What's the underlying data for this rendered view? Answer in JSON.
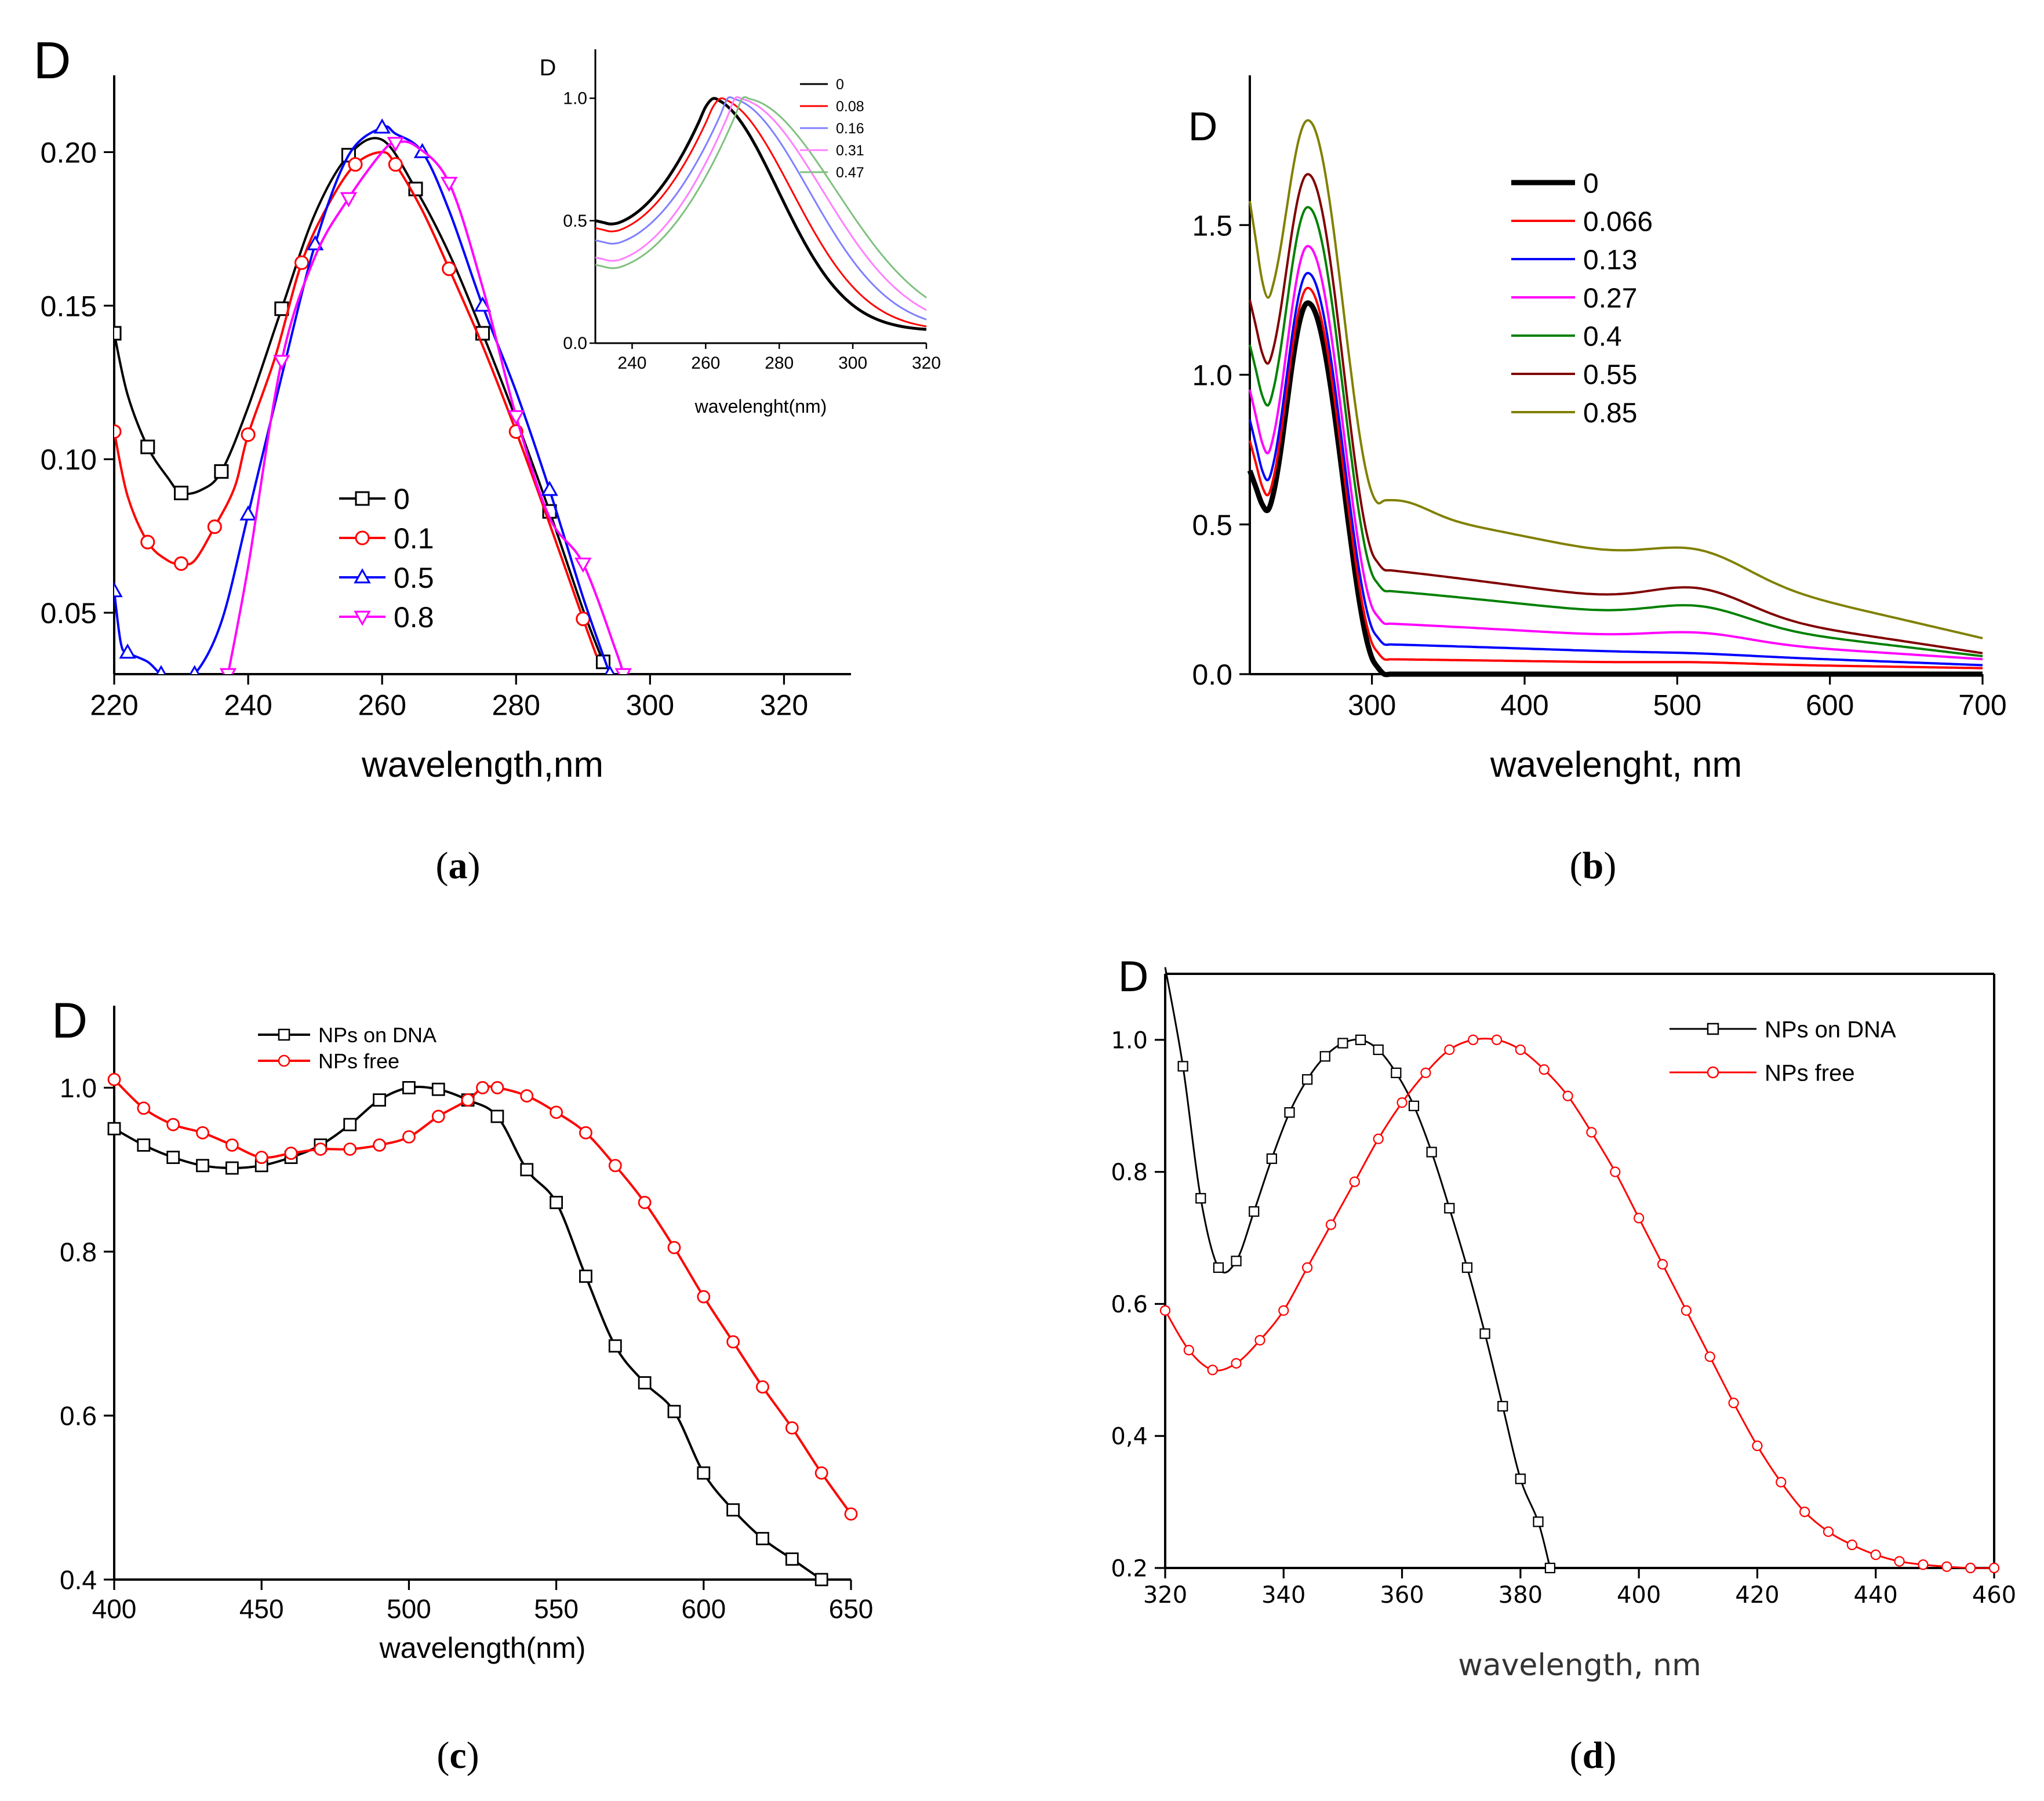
{
  "panels": [
    {
      "id": "a",
      "caption_open": "(",
      "caption_letter": "a",
      "caption_close": ")",
      "chart_data": {
        "type": "line",
        "title": "",
        "ylabel": "D",
        "xlabel": "wavelength,nm",
        "xlim": [
          220,
          330
        ],
        "ylim": [
          0.03,
          0.225
        ],
        "xticks": [
          "220",
          "240",
          "260",
          "280",
          "300",
          "320"
        ],
        "yticks": [
          "0.05",
          "0.10",
          "0.15",
          "0.20"
        ],
        "legend_position": "lower-left",
        "series": [
          {
            "name": "0",
            "color": "#000000",
            "marker": "square",
            "x": [
              220,
              222,
              225,
              228,
              230,
              233,
              236,
              240,
              245,
              250,
              255,
              260,
              265,
              270,
              275,
              280,
              285,
              290,
              293
            ],
            "y": [
              0.141,
              0.121,
              0.104,
              0.094,
              0.089,
              0.09,
              0.096,
              0.117,
              0.149,
              0.18,
              0.199,
              0.204,
              0.188,
              0.167,
              0.141,
              0.113,
              0.083,
              0.051,
              0.034
            ]
          },
          {
            "name": "0.1",
            "color": "#ff0000",
            "marker": "circle",
            "x": [
              220,
              222,
              225,
              228,
              230,
              232,
              235,
              238,
              240,
              244,
              248,
              252,
              256,
              260,
              262,
              266,
              270,
              275,
              280,
              285,
              290,
              292
            ],
            "y": [
              0.109,
              0.088,
              0.073,
              0.067,
              0.066,
              0.067,
              0.078,
              0.091,
              0.108,
              0.133,
              0.164,
              0.183,
              0.196,
              0.2,
              0.196,
              0.181,
              0.162,
              0.137,
              0.109,
              0.079,
              0.048,
              0.036
            ]
          },
          {
            "name": "0.5",
            "color": "#0000ff",
            "marker": "triangle-up",
            "x": [
              220,
              221,
              222,
              225,
              227,
              229,
              232,
              236,
              240,
              245,
              250,
              255,
              260,
              262,
              266,
              270,
              275,
              280,
              285,
              290,
              294
            ],
            "y": [
              0.057,
              0.04,
              0.037,
              0.034,
              0.03,
              0.029,
              0.03,
              0.047,
              0.082,
              0.127,
              0.17,
              0.199,
              0.208,
              0.206,
              0.2,
              0.181,
              0.15,
              0.122,
              0.09,
              0.055,
              0.03
            ]
          },
          {
            "name": "0.8",
            "color": "#ff00ff",
            "marker": "triangle-down",
            "x": [
              237,
              240,
              245,
              250,
              255,
              260,
              262,
              265,
              270,
              275,
              280,
              285,
              290,
              295,
              296
            ],
            "y": [
              0.03,
              0.065,
              0.132,
              0.166,
              0.185,
              0.2,
              0.203,
              0.202,
              0.19,
              0.156,
              0.114,
              0.081,
              0.066,
              0.037,
              0.03
            ]
          }
        ],
        "inset": {
          "type": "line",
          "ylabel": "D",
          "xlabel": "wavelenght(nm)",
          "xlim": [
            230,
            320
          ],
          "ylim": [
            0.0,
            1.2
          ],
          "xticks": [
            "240",
            "260",
            "280",
            "300",
            "320"
          ],
          "yticks": [
            "0.0",
            "0.5",
            "1.0"
          ],
          "legend_position": "top-right",
          "series": [
            {
              "name": "0",
              "color": "#000000",
              "peak": 261,
              "min_y": 0.48
            },
            {
              "name": "0.08",
              "color": "#ff0000",
              "peak": 263,
              "min_y": 0.45
            },
            {
              "name": "0.16",
              "color": "#8080ff",
              "peak": 266,
              "min_y": 0.4
            },
            {
              "name": "0.31",
              "color": "#ff80ff",
              "peak": 268,
              "min_y": 0.33
            },
            {
              "name": "0.47",
              "color": "#80c080",
              "peak": 270,
              "min_y": 0.3
            }
          ]
        }
      }
    },
    {
      "id": "b",
      "caption_open": "(",
      "caption_letter": "b",
      "caption_close": ")",
      "chart_data": {
        "type": "line",
        "title": "",
        "ylabel": "D",
        "xlabel": "wavelenght, nm",
        "xlim": [
          220,
          700
        ],
        "ylim": [
          0.0,
          2.0
        ],
        "xticks": [
          "300",
          "400",
          "500",
          "600",
          "700"
        ],
        "yticks": [
          "0.0",
          "0.5",
          "1.0",
          "1.5"
        ],
        "legend_position": "top-center",
        "series": [
          {
            "name": "0",
            "color": "#000000",
            "start": 0.68,
            "dip": 0.54,
            "peak": 1.24,
            "plateau": 0.0,
            "bump": 0.0,
            "end": 0.0
          },
          {
            "name": "0.066",
            "color": "#ff0000",
            "start": 0.78,
            "dip": 0.59,
            "peak": 1.29,
            "plateau": 0.05,
            "bump": 0.04,
            "end": 0.02
          },
          {
            "name": "0.13",
            "color": "#0000ff",
            "start": 0.85,
            "dip": 0.64,
            "peak": 1.34,
            "plateau": 0.1,
            "bump": 0.07,
            "end": 0.03
          },
          {
            "name": "0.27",
            "color": "#ff00ff",
            "start": 0.95,
            "dip": 0.73,
            "peak": 1.43,
            "plateau": 0.17,
            "bump": 0.14,
            "end": 0.05
          },
          {
            "name": "0.4",
            "color": "#008000",
            "start": 1.1,
            "dip": 0.89,
            "peak": 1.56,
            "plateau": 0.28,
            "bump": 0.23,
            "end": 0.06
          },
          {
            "name": "0.55",
            "color": "#800000",
            "start": 1.25,
            "dip": 1.03,
            "peak": 1.67,
            "plateau": 0.35,
            "bump": 0.29,
            "end": 0.07
          },
          {
            "name": "0.85",
            "color": "#808000",
            "start": 1.58,
            "dip": 1.25,
            "peak": 1.85,
            "plateau": 0.55,
            "bump": 0.42,
            "end": 0.12
          }
        ]
      }
    },
    {
      "id": "c",
      "caption_open": "(",
      "caption_letter": "c",
      "caption_close": ")",
      "chart_data": {
        "type": "line",
        "title": "",
        "ylabel": "D",
        "xlabel": "wavelength(nm)",
        "xlim": [
          400,
          650
        ],
        "ylim": [
          0.4,
          1.1
        ],
        "xticks": [
          "400",
          "450",
          "500",
          "550",
          "600",
          "650"
        ],
        "yticks": [
          "0.4",
          "0.6",
          "0.8",
          "1.0"
        ],
        "legend_position": "top-left",
        "series": [
          {
            "name": "NPs on DNA",
            "color": "#000000",
            "marker": "square-open",
            "x": [
              400,
              410,
              420,
              430,
              440,
              450,
              460,
              470,
              480,
              490,
              500,
              510,
              520,
              530,
              540,
              550,
              560,
              570,
              580,
              590,
              600,
              610,
              620,
              630,
              640
            ],
            "y": [
              0.95,
              0.93,
              0.915,
              0.905,
              0.902,
              0.905,
              0.915,
              0.93,
              0.955,
              0.985,
              1.0,
              0.998,
              0.985,
              0.965,
              0.9,
              0.86,
              0.77,
              0.685,
              0.64,
              0.605,
              0.53,
              0.485,
              0.45,
              0.425,
              0.4
            ]
          },
          {
            "name": "NPs free",
            "color": "#ff0000",
            "marker": "circle-open",
            "x": [
              400,
              410,
              420,
              430,
              440,
              450,
              460,
              470,
              480,
              490,
              500,
              510,
              520,
              525,
              530,
              540,
              550,
              560,
              570,
              580,
              590,
              600,
              610,
              620,
              630,
              640,
              650
            ],
            "y": [
              1.01,
              0.975,
              0.955,
              0.945,
              0.93,
              0.915,
              0.92,
              0.925,
              0.925,
              0.93,
              0.94,
              0.965,
              0.985,
              1.0,
              1.0,
              0.99,
              0.97,
              0.945,
              0.905,
              0.86,
              0.805,
              0.745,
              0.69,
              0.635,
              0.585,
              0.53,
              0.48
            ]
          }
        ]
      }
    },
    {
      "id": "d",
      "caption_open": "(",
      "caption_letter": "d",
      "caption_close": ")",
      "chart_data": {
        "type": "line",
        "title": "",
        "ylabel": "D",
        "xlabel": "wavelength, nm",
        "xlim": [
          320,
          460
        ],
        "ylim": [
          0.2,
          1.1
        ],
        "xticks": [
          "320",
          "340",
          "360",
          "380",
          "400",
          "420",
          "440",
          "460"
        ],
        "yticks": [
          "0.2",
          "0,4",
          "0.6",
          "0.8",
          "1.0"
        ],
        "legend_position": "top-right",
        "series": [
          {
            "name": "NPs on DNA",
            "color": "#000000",
            "marker": "square-open",
            "x": [
              320,
              323,
              326,
              329,
              332,
              335,
              338,
              341,
              344,
              347,
              350,
              353,
              356,
              359,
              362,
              365,
              368,
              371,
              374,
              377,
              380,
              383,
              385
            ],
            "y": [
              1.11,
              0.96,
              0.76,
              0.655,
              0.665,
              0.74,
              0.82,
              0.89,
              0.94,
              0.975,
              0.995,
              1.0,
              0.985,
              0.95,
              0.9,
              0.83,
              0.745,
              0.655,
              0.555,
              0.445,
              0.335,
              0.27,
              0.2
            ]
          },
          {
            "name": "NPs free",
            "color": "#ff0000",
            "marker": "circle-open",
            "x": [
              320,
              324,
              328,
              332,
              336,
              340,
              344,
              348,
              352,
              356,
              360,
              364,
              368,
              372,
              376,
              380,
              384,
              388,
              392,
              396,
              400,
              404,
              408,
              412,
              416,
              420,
              424,
              428,
              432,
              436,
              440,
              444,
              448,
              452,
              456,
              460
            ],
            "y": [
              0.59,
              0.53,
              0.5,
              0.51,
              0.545,
              0.59,
              0.655,
              0.72,
              0.785,
              0.85,
              0.905,
              0.95,
              0.985,
              1.0,
              1.0,
              0.985,
              0.955,
              0.915,
              0.86,
              0.8,
              0.73,
              0.66,
              0.59,
              0.52,
              0.45,
              0.385,
              0.33,
              0.285,
              0.255,
              0.235,
              0.22,
              0.21,
              0.205,
              0.202,
              0.2,
              0.2
            ]
          }
        ]
      }
    }
  ]
}
